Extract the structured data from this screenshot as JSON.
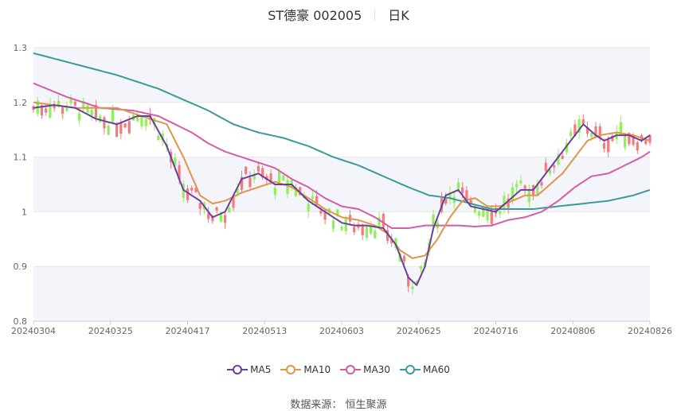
{
  "header": {
    "stock": "ST德豪 002005",
    "period": "日K"
  },
  "source": "数据来源： 恒生聚源",
  "colors": {
    "up": "#f47b7b",
    "down": "#8ff05a",
    "ma5": "#6a3fa0",
    "ma10": "#e0954a",
    "ma30": "#d65ca8",
    "ma60": "#3d9a9a",
    "band": "#f4f5fb",
    "grid": "#e6e6e6"
  },
  "chart_data": {
    "type": "candlestick",
    "ylim": [
      0.8,
      1.3
    ],
    "y_ticks": [
      "0.8",
      "0.9",
      "1",
      "1.1",
      "1.2",
      "1.3"
    ],
    "x_tick_labels": [
      "20240304",
      "20240325",
      "20240417",
      "20240513",
      "20240603",
      "20240625",
      "20240716",
      "20240806",
      "20240826"
    ],
    "legend": [
      {
        "key": "ma5",
        "label": "MA5"
      },
      {
        "key": "ma10",
        "label": "MA10"
      },
      {
        "key": "ma30",
        "label": "MA30"
      },
      {
        "key": "ma60",
        "label": "MA60"
      }
    ],
    "series_keyframes": {
      "ma5": [
        [
          0,
          1.19
        ],
        [
          5,
          1.195
        ],
        [
          10,
          1.19
        ],
        [
          15,
          1.17
        ],
        [
          20,
          1.16
        ],
        [
          25,
          1.175
        ],
        [
          28,
          1.175
        ],
        [
          32,
          1.12
        ],
        [
          36,
          1.04
        ],
        [
          40,
          1.02
        ],
        [
          43,
          0.99
        ],
        [
          46,
          1.0
        ],
        [
          50,
          1.06
        ],
        [
          54,
          1.07
        ],
        [
          58,
          1.05
        ],
        [
          62,
          1.05
        ],
        [
          66,
          1.02
        ],
        [
          70,
          1.0
        ],
        [
          74,
          0.98
        ],
        [
          77,
          0.975
        ],
        [
          80,
          0.975
        ],
        [
          84,
          0.97
        ],
        [
          87,
          0.94
        ],
        [
          90,
          0.88
        ],
        [
          92,
          0.866
        ],
        [
          94,
          0.9
        ],
        [
          96,
          0.97
        ],
        [
          99,
          1.03
        ],
        [
          102,
          1.04
        ],
        [
          105,
          1.01
        ],
        [
          108,
          1.005
        ],
        [
          111,
          1.0
        ],
        [
          114,
          1.02
        ],
        [
          117,
          1.04
        ],
        [
          120,
          1.04
        ],
        [
          123,
          1.07
        ],
        [
          126,
          1.1
        ],
        [
          129,
          1.13
        ],
        [
          132,
          1.16
        ],
        [
          135,
          1.14
        ],
        [
          137,
          1.13
        ],
        [
          140,
          1.14
        ],
        [
          143,
          1.14
        ],
        [
          146,
          1.13
        ],
        [
          148,
          1.14
        ]
      ],
      "ma10": [
        [
          0,
          1.2
        ],
        [
          10,
          1.19
        ],
        [
          20,
          1.19
        ],
        [
          28,
          1.17
        ],
        [
          32,
          1.16
        ],
        [
          36,
          1.1
        ],
        [
          40,
          1.03
        ],
        [
          43,
          1.015
        ],
        [
          46,
          1.02
        ],
        [
          50,
          1.035
        ],
        [
          54,
          1.045
        ],
        [
          58,
          1.055
        ],
        [
          62,
          1.045
        ],
        [
          66,
          1.025
        ],
        [
          70,
          1.005
        ],
        [
          74,
          0.99
        ],
        [
          78,
          0.985
        ],
        [
          82,
          0.975
        ],
        [
          85,
          0.96
        ],
        [
          88,
          0.93
        ],
        [
          91,
          0.915
        ],
        [
          94,
          0.92
        ],
        [
          97,
          0.95
        ],
        [
          100,
          0.99
        ],
        [
          103,
          1.02
        ],
        [
          106,
          1.025
        ],
        [
          109,
          1.01
        ],
        [
          112,
          1.01
        ],
        [
          115,
          1.02
        ],
        [
          118,
          1.03
        ],
        [
          121,
          1.03
        ],
        [
          124,
          1.05
        ],
        [
          127,
          1.07
        ],
        [
          130,
          1.1
        ],
        [
          133,
          1.13
        ],
        [
          136,
          1.14
        ],
        [
          140,
          1.145
        ],
        [
          144,
          1.14
        ],
        [
          148,
          1.13
        ]
      ],
      "ma30": [
        [
          0,
          1.235
        ],
        [
          8,
          1.21
        ],
        [
          16,
          1.19
        ],
        [
          24,
          1.185
        ],
        [
          30,
          1.175
        ],
        [
          34,
          1.16
        ],
        [
          38,
          1.145
        ],
        [
          42,
          1.125
        ],
        [
          46,
          1.11
        ],
        [
          50,
          1.1
        ],
        [
          54,
          1.09
        ],
        [
          58,
          1.08
        ],
        [
          62,
          1.06
        ],
        [
          66,
          1.045
        ],
        [
          70,
          1.025
        ],
        [
          74,
          1.01
        ],
        [
          78,
          1.005
        ],
        [
          82,
          0.99
        ],
        [
          86,
          0.97
        ],
        [
          90,
          0.97
        ],
        [
          94,
          0.975
        ],
        [
          98,
          0.975
        ],
        [
          102,
          0.975
        ],
        [
          106,
          0.973
        ],
        [
          110,
          0.975
        ],
        [
          114,
          0.985
        ],
        [
          118,
          0.99
        ],
        [
          122,
          1.0
        ],
        [
          126,
          1.02
        ],
        [
          130,
          1.045
        ],
        [
          134,
          1.065
        ],
        [
          138,
          1.07
        ],
        [
          142,
          1.085
        ],
        [
          146,
          1.1
        ],
        [
          148,
          1.11
        ]
      ],
      "ma60": [
        [
          0,
          1.29
        ],
        [
          10,
          1.27
        ],
        [
          20,
          1.25
        ],
        [
          30,
          1.225
        ],
        [
          36,
          1.205
        ],
        [
          42,
          1.185
        ],
        [
          48,
          1.16
        ],
        [
          54,
          1.145
        ],
        [
          60,
          1.135
        ],
        [
          66,
          1.12
        ],
        [
          72,
          1.1
        ],
        [
          78,
          1.085
        ],
        [
          84,
          1.065
        ],
        [
          90,
          1.045
        ],
        [
          95,
          1.03
        ],
        [
          100,
          1.025
        ],
        [
          105,
          1.015
        ],
        [
          110,
          1.005
        ],
        [
          115,
          1.005
        ],
        [
          120,
          1.005
        ],
        [
          126,
          1.01
        ],
        [
          132,
          1.015
        ],
        [
          138,
          1.02
        ],
        [
          144,
          1.03
        ],
        [
          148,
          1.04
        ]
      ]
    }
  }
}
